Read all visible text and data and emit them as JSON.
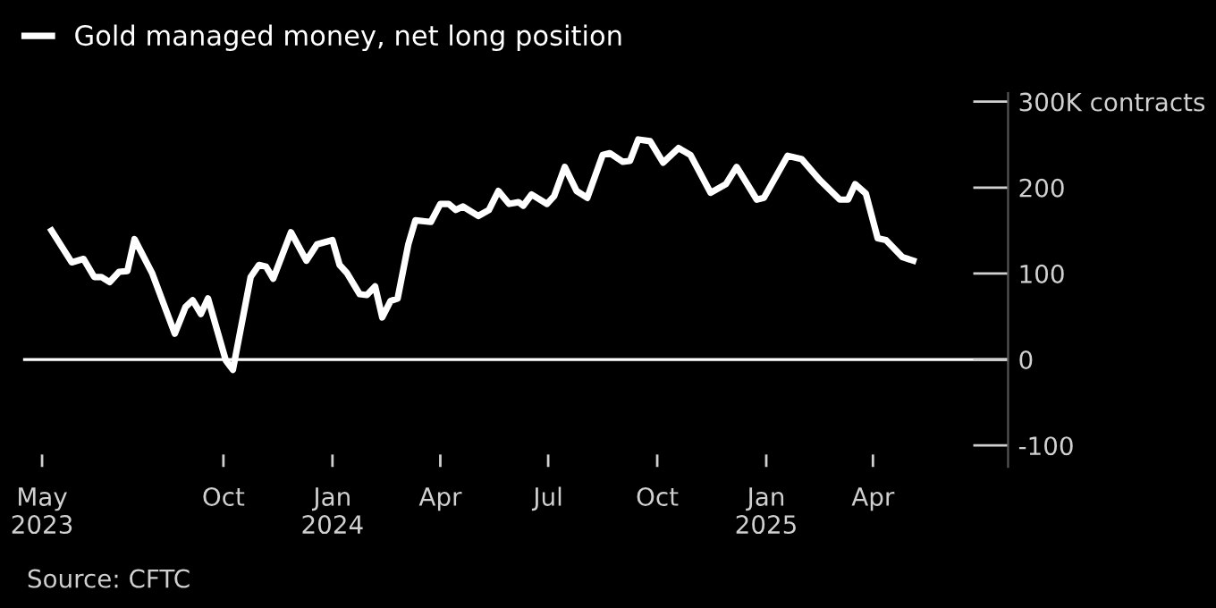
{
  "chart_data": {
    "type": "line",
    "x": [
      "2023-05-09",
      "2023-05-26",
      "2023-06-05",
      "2023-06-14",
      "2023-06-20",
      "2023-06-27",
      "2023-07-05",
      "2023-07-12",
      "2023-07-18",
      "2023-08-02",
      "2023-08-21",
      "2023-08-30",
      "2023-09-05",
      "2023-09-12",
      "2023-09-18",
      "2023-10-03",
      "2023-10-09",
      "2023-10-24",
      "2023-10-31",
      "2023-11-06",
      "2023-11-12",
      "2023-11-27",
      "2023-12-10",
      "2023-12-19",
      "2024-01-01",
      "2024-01-07",
      "2024-01-13",
      "2024-01-24",
      "2024-01-30",
      "2024-02-06",
      "2024-02-12",
      "2024-02-19",
      "2024-02-25",
      "2024-03-05",
      "2024-03-11",
      "2024-03-24",
      "2024-04-01",
      "2024-04-08",
      "2024-04-14",
      "2024-04-20",
      "2024-05-03",
      "2024-05-12",
      "2024-05-20",
      "2024-05-29",
      "2024-06-06",
      "2024-06-10",
      "2024-06-17",
      "2024-06-30",
      "2024-07-06",
      "2024-07-15",
      "2024-07-25",
      "2024-08-03",
      "2024-08-16",
      "2024-08-22",
      "2024-09-02",
      "2024-09-08",
      "2024-09-15",
      "2024-09-25",
      "2024-10-06",
      "2024-10-19",
      "2024-10-29",
      "2024-11-15",
      "2024-11-28",
      "2024-12-07",
      "2024-12-24",
      "2024-12-30",
      "2025-01-19",
      "2025-01-31",
      "2025-02-15",
      "2025-03-04",
      "2025-03-11",
      "2025-03-17",
      "2025-03-26",
      "2025-04-05",
      "2025-04-12",
      "2025-04-26",
      "2025-05-05"
    ],
    "series": [
      {
        "name": "Gold managed money, net long position",
        "color": "#ffffff",
        "values": [
          150,
          113,
          117,
          96,
          96,
          90,
          102,
          103,
          140,
          100,
          30,
          61,
          69,
          53,
          71,
          -1,
          -12,
          96,
          110,
          108,
          94,
          148,
          115,
          134,
          139,
          110,
          101,
          76,
          75,
          85,
          49,
          68,
          71,
          134,
          162,
          160,
          181,
          181,
          174,
          178,
          167,
          174,
          196,
          181,
          183,
          179,
          192,
          181,
          190,
          224,
          196,
          188,
          238,
          240,
          230,
          231,
          256,
          254,
          229,
          246,
          238,
          194,
          204,
          224,
          186,
          188,
          237,
          233,
          209,
          186,
          186,
          204,
          193,
          141,
          139,
          119,
          115
        ]
      }
    ],
    "xlim": [
      "2023-04-15",
      "2025-07-24"
    ],
    "xticks": [
      {
        "value": "2023-05-01",
        "label": "May\n2023"
      },
      {
        "value": "2023-10-01",
        "label": "Oct"
      },
      {
        "value": "2024-01-01",
        "label": "Jan\n2024"
      },
      {
        "value": "2024-04-01",
        "label": "Apr"
      },
      {
        "value": "2024-07-01",
        "label": "Jul"
      },
      {
        "value": "2024-10-01",
        "label": "Oct"
      },
      {
        "value": "2025-01-01",
        "label": "Jan\n2025"
      },
      {
        "value": "2025-04-01",
        "label": "Apr"
      }
    ],
    "ylim": [
      -125,
      310
    ],
    "yticks": [
      {
        "value": 300,
        "label": "300K contracts"
      },
      200,
      100,
      0,
      -100
    ],
    "ref_lines": [
      {
        "axis": "y",
        "value": 0,
        "color": "#ffffff"
      }
    ],
    "legend": "top left",
    "grid": false,
    "annotations": [
      "Source: CFTC"
    ]
  }
}
